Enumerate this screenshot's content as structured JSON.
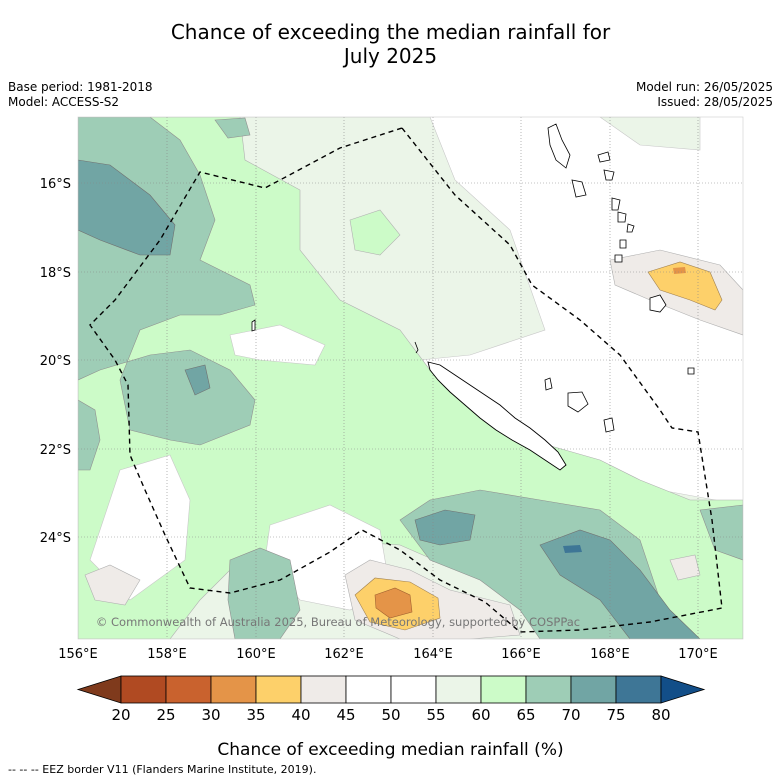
{
  "title_line1": "Chance of exceeding the median rainfall for",
  "title_line2": "July 2025",
  "base_period": "Base period: 1981-2018",
  "model": "Model: ACCESS-S2",
  "model_run": "Model run: 26/05/2025",
  "issued": "Issued: 28/05/2025",
  "copyright": "© Commonwealth of Australia 2025, Bureau of Meteorology, supported by COSPPac",
  "map": {
    "lon_labels": [
      "156°E",
      "158°E",
      "160°E",
      "162°E",
      "164°E",
      "166°E",
      "168°E",
      "170°E"
    ],
    "lat_labels": [
      "16°S",
      "18°S",
      "20°S",
      "22°S",
      "24°S"
    ]
  },
  "colorbar": {
    "ticks": [
      "20",
      "25",
      "30",
      "35",
      "40",
      "45",
      "50",
      "55",
      "60",
      "65",
      "70",
      "75",
      "80"
    ],
    "colors": [
      "#7f3a1c",
      "#b04a22",
      "#c9622e",
      "#e49448",
      "#fdd06a",
      "#efebe8",
      "#ffffff",
      "#ffffff",
      "#ebf5e8",
      "#ccfbc8",
      "#9ecdb6",
      "#71a5a4",
      "#3e7696",
      "#124e88"
    ],
    "label": "Chance of exceeding median rainfall (%)"
  },
  "legend_note": "--  --  -- EEZ border V11 (Flanders Marine Institute, 2019)."
}
